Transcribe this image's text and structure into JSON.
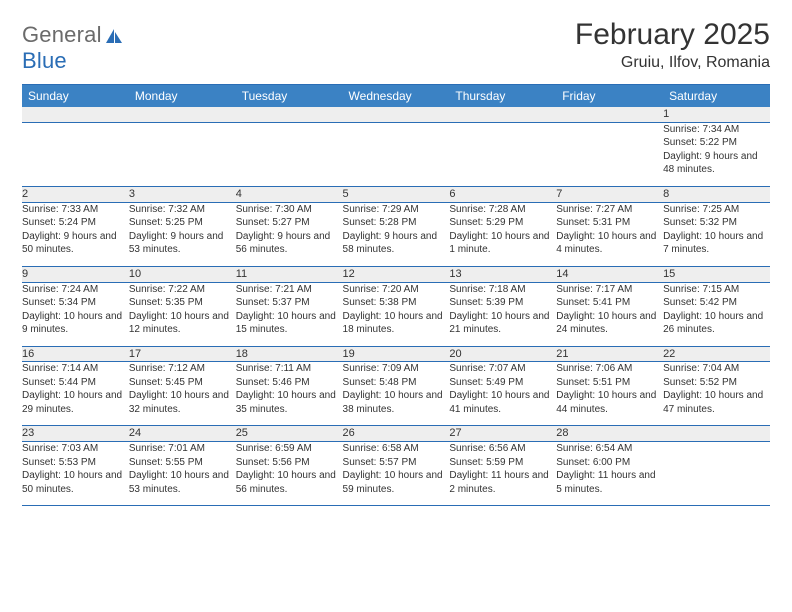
{
  "logo": {
    "textGray": "General",
    "textBlue": "Blue",
    "sailColor": "#2a6db5"
  },
  "title": "February 2025",
  "location": "Gruiu, Ilfov, Romania",
  "colors": {
    "headerBar": "#3b82c4",
    "divider": "#2a6db5",
    "dayNumBg": "#eeeeee",
    "text": "#333333",
    "logoGray": "#6b6b6b"
  },
  "dayHeaders": [
    "Sunday",
    "Monday",
    "Tuesday",
    "Wednesday",
    "Thursday",
    "Friday",
    "Saturday"
  ],
  "weeks": [
    [
      null,
      null,
      null,
      null,
      null,
      null,
      {
        "n": "1",
        "sunrise": "Sunrise: 7:34 AM",
        "sunset": "Sunset: 5:22 PM",
        "daylight": "Daylight: 9 hours and 48 minutes."
      }
    ],
    [
      {
        "n": "2",
        "sunrise": "Sunrise: 7:33 AM",
        "sunset": "Sunset: 5:24 PM",
        "daylight": "Daylight: 9 hours and 50 minutes."
      },
      {
        "n": "3",
        "sunrise": "Sunrise: 7:32 AM",
        "sunset": "Sunset: 5:25 PM",
        "daylight": "Daylight: 9 hours and 53 minutes."
      },
      {
        "n": "4",
        "sunrise": "Sunrise: 7:30 AM",
        "sunset": "Sunset: 5:27 PM",
        "daylight": "Daylight: 9 hours and 56 minutes."
      },
      {
        "n": "5",
        "sunrise": "Sunrise: 7:29 AM",
        "sunset": "Sunset: 5:28 PM",
        "daylight": "Daylight: 9 hours and 58 minutes."
      },
      {
        "n": "6",
        "sunrise": "Sunrise: 7:28 AM",
        "sunset": "Sunset: 5:29 PM",
        "daylight": "Daylight: 10 hours and 1 minute."
      },
      {
        "n": "7",
        "sunrise": "Sunrise: 7:27 AM",
        "sunset": "Sunset: 5:31 PM",
        "daylight": "Daylight: 10 hours and 4 minutes."
      },
      {
        "n": "8",
        "sunrise": "Sunrise: 7:25 AM",
        "sunset": "Sunset: 5:32 PM",
        "daylight": "Daylight: 10 hours and 7 minutes."
      }
    ],
    [
      {
        "n": "9",
        "sunrise": "Sunrise: 7:24 AM",
        "sunset": "Sunset: 5:34 PM",
        "daylight": "Daylight: 10 hours and 9 minutes."
      },
      {
        "n": "10",
        "sunrise": "Sunrise: 7:22 AM",
        "sunset": "Sunset: 5:35 PM",
        "daylight": "Daylight: 10 hours and 12 minutes."
      },
      {
        "n": "11",
        "sunrise": "Sunrise: 7:21 AM",
        "sunset": "Sunset: 5:37 PM",
        "daylight": "Daylight: 10 hours and 15 minutes."
      },
      {
        "n": "12",
        "sunrise": "Sunrise: 7:20 AM",
        "sunset": "Sunset: 5:38 PM",
        "daylight": "Daylight: 10 hours and 18 minutes."
      },
      {
        "n": "13",
        "sunrise": "Sunrise: 7:18 AM",
        "sunset": "Sunset: 5:39 PM",
        "daylight": "Daylight: 10 hours and 21 minutes."
      },
      {
        "n": "14",
        "sunrise": "Sunrise: 7:17 AM",
        "sunset": "Sunset: 5:41 PM",
        "daylight": "Daylight: 10 hours and 24 minutes."
      },
      {
        "n": "15",
        "sunrise": "Sunrise: 7:15 AM",
        "sunset": "Sunset: 5:42 PM",
        "daylight": "Daylight: 10 hours and 26 minutes."
      }
    ],
    [
      {
        "n": "16",
        "sunrise": "Sunrise: 7:14 AM",
        "sunset": "Sunset: 5:44 PM",
        "daylight": "Daylight: 10 hours and 29 minutes."
      },
      {
        "n": "17",
        "sunrise": "Sunrise: 7:12 AM",
        "sunset": "Sunset: 5:45 PM",
        "daylight": "Daylight: 10 hours and 32 minutes."
      },
      {
        "n": "18",
        "sunrise": "Sunrise: 7:11 AM",
        "sunset": "Sunset: 5:46 PM",
        "daylight": "Daylight: 10 hours and 35 minutes."
      },
      {
        "n": "19",
        "sunrise": "Sunrise: 7:09 AM",
        "sunset": "Sunset: 5:48 PM",
        "daylight": "Daylight: 10 hours and 38 minutes."
      },
      {
        "n": "20",
        "sunrise": "Sunrise: 7:07 AM",
        "sunset": "Sunset: 5:49 PM",
        "daylight": "Daylight: 10 hours and 41 minutes."
      },
      {
        "n": "21",
        "sunrise": "Sunrise: 7:06 AM",
        "sunset": "Sunset: 5:51 PM",
        "daylight": "Daylight: 10 hours and 44 minutes."
      },
      {
        "n": "22",
        "sunrise": "Sunrise: 7:04 AM",
        "sunset": "Sunset: 5:52 PM",
        "daylight": "Daylight: 10 hours and 47 minutes."
      }
    ],
    [
      {
        "n": "23",
        "sunrise": "Sunrise: 7:03 AM",
        "sunset": "Sunset: 5:53 PM",
        "daylight": "Daylight: 10 hours and 50 minutes."
      },
      {
        "n": "24",
        "sunrise": "Sunrise: 7:01 AM",
        "sunset": "Sunset: 5:55 PM",
        "daylight": "Daylight: 10 hours and 53 minutes."
      },
      {
        "n": "25",
        "sunrise": "Sunrise: 6:59 AM",
        "sunset": "Sunset: 5:56 PM",
        "daylight": "Daylight: 10 hours and 56 minutes."
      },
      {
        "n": "26",
        "sunrise": "Sunrise: 6:58 AM",
        "sunset": "Sunset: 5:57 PM",
        "daylight": "Daylight: 10 hours and 59 minutes."
      },
      {
        "n": "27",
        "sunrise": "Sunrise: 6:56 AM",
        "sunset": "Sunset: 5:59 PM",
        "daylight": "Daylight: 11 hours and 2 minutes."
      },
      {
        "n": "28",
        "sunrise": "Sunrise: 6:54 AM",
        "sunset": "Sunset: 6:00 PM",
        "daylight": "Daylight: 11 hours and 5 minutes."
      },
      null
    ]
  ]
}
